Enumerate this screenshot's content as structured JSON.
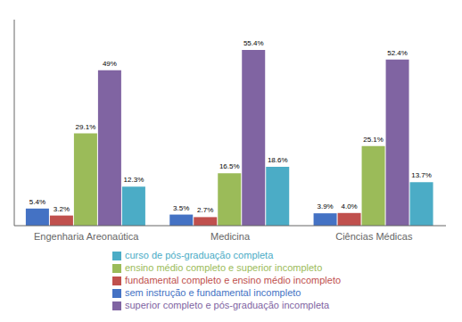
{
  "chart_data": {
    "type": "bar",
    "categories": [
      "Engenharia Areonaútica",
      "Medicina",
      "Ciências Médicas"
    ],
    "series": [
      {
        "name": "sem instrução e fundamental incompleto",
        "color": "#4472c4",
        "values": [
          5.4,
          3.5,
          3.9
        ],
        "value_labels": [
          "5.4%",
          "3.5%",
          "3.9%"
        ]
      },
      {
        "name": "fundamental completo e ensino médio incompleto",
        "color": "#c0504d",
        "values": [
          3.2,
          2.7,
          4.0
        ],
        "value_labels": [
          "3.2%",
          "2.7%",
          "4.0%"
        ]
      },
      {
        "name": "ensino médio completo e superior incompleto",
        "color": "#9bbb59",
        "values": [
          29.1,
          16.5,
          25.1
        ],
        "value_labels": [
          "29.1%",
          "16.5%",
          "25.1%"
        ]
      },
      {
        "name": "superior completo e pós-graduação incompleta",
        "color": "#8064a2",
        "values": [
          49.0,
          55.4,
          52.4
        ],
        "value_labels": [
          "49%",
          "55.4%",
          "52.4%"
        ]
      },
      {
        "name": "curso de pós-graduação completa",
        "color": "#4bacc6",
        "values": [
          12.3,
          18.6,
          13.7
        ],
        "value_labels": [
          "12.3%",
          "18.6%",
          "13.7%"
        ]
      }
    ],
    "ylim": [
      0,
      65
    ],
    "data_labels": true,
    "tick_labels": "x",
    "grid": false,
    "legend": "bottom"
  }
}
